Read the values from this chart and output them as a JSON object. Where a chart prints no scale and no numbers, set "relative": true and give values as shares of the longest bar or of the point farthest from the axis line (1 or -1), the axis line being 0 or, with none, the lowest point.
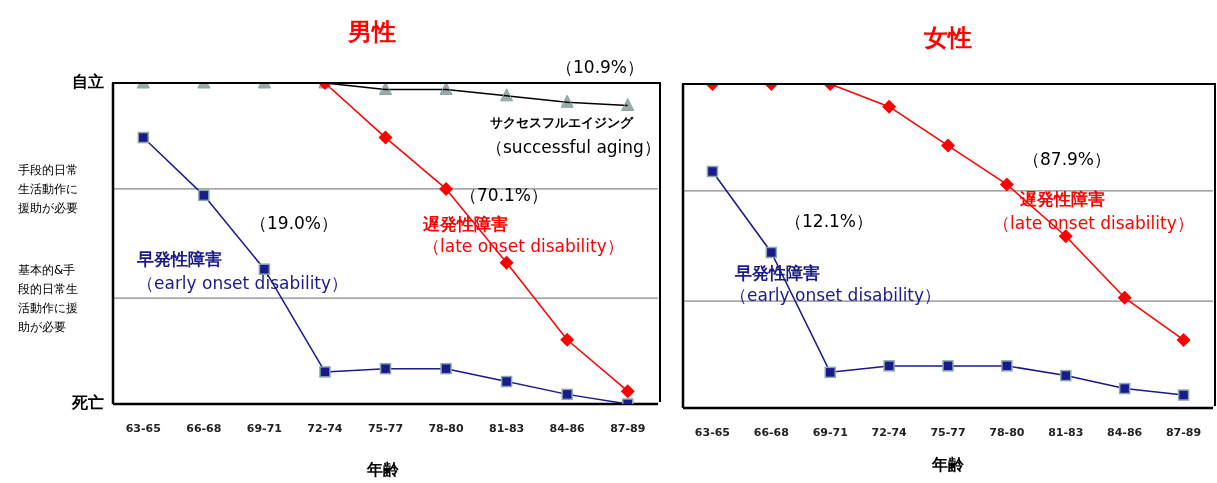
{
  "chart_data": [
    {
      "type": "line",
      "title": "男性",
      "xlabel": "年齢",
      "relative": true,
      "categories": [
        "63-65",
        "66-68",
        "69-71",
        "72-74",
        "75-77",
        "78-80",
        "81-83",
        "84-86",
        "87-89"
      ],
      "series": [
        {
          "name": "サクセスフルエイジング",
          "color": "#000000",
          "marker": "triangle",
          "values": [
            1,
            1,
            1,
            1,
            0.98,
            0.98,
            0.96,
            0.94,
            0.93
          ]
        },
        {
          "name": "遅発性障害",
          "color": "#ff0000",
          "marker": "diamond",
          "values": [
            null,
            null,
            null,
            1,
            0.83,
            0.67,
            0.44,
            0.2,
            0.04
          ]
        },
        {
          "name": "早発性障害",
          "color": "#1a1a8c",
          "marker": "square",
          "values": [
            0.83,
            0.65,
            0.42,
            0.1,
            0.11,
            0.11,
            0.07,
            0.03,
            0
          ]
        }
      ],
      "ref_lines": [
        {
          "axis": "y",
          "value": 0.33,
          "label": "基本的&手段的日常生活動作に援助が必要"
        },
        {
          "axis": "y",
          "value": 0.67,
          "label": "手段的日常生活動作に援助が必要"
        }
      ],
      "legend": false,
      "line_style": "solid",
      "annotations": [
        "（10.9%）",
        "（successful aging）",
        "（70.1%）",
        "（late onset disability）",
        "（19.0%）",
        "（early onset disability）",
        "自立",
        "死亡"
      ]
    },
    {
      "type": "line",
      "title": "女性",
      "xlabel": "年齢",
      "relative": true,
      "categories": [
        "63-65",
        "66-68",
        "69-71",
        "72-74",
        "75-77",
        "78-80",
        "81-83",
        "84-86",
        "87-89"
      ],
      "series": [
        {
          "name": "遅発性障害",
          "color": "#ff0000",
          "marker": "diamond",
          "values": [
            1,
            1,
            1,
            0.93,
            0.81,
            0.69,
            0.53,
            0.34,
            0.21
          ]
        },
        {
          "name": "早発性障害",
          "color": "#1a1a8c",
          "marker": "square",
          "values": [
            0.73,
            0.48,
            0.11,
            0.13,
            0.13,
            0.13,
            0.1,
            0.06,
            0.04
          ]
        }
      ],
      "ref_lines": [
        {
          "axis": "y",
          "value": 0.33
        },
        {
          "axis": "y",
          "value": 0.67
        }
      ],
      "legend": false,
      "line_style": "solid",
      "annotations": [
        "（87.9%）",
        "（late onset disability）",
        "（12.1%）",
        "（early onset disability）"
      ]
    }
  ]
}
